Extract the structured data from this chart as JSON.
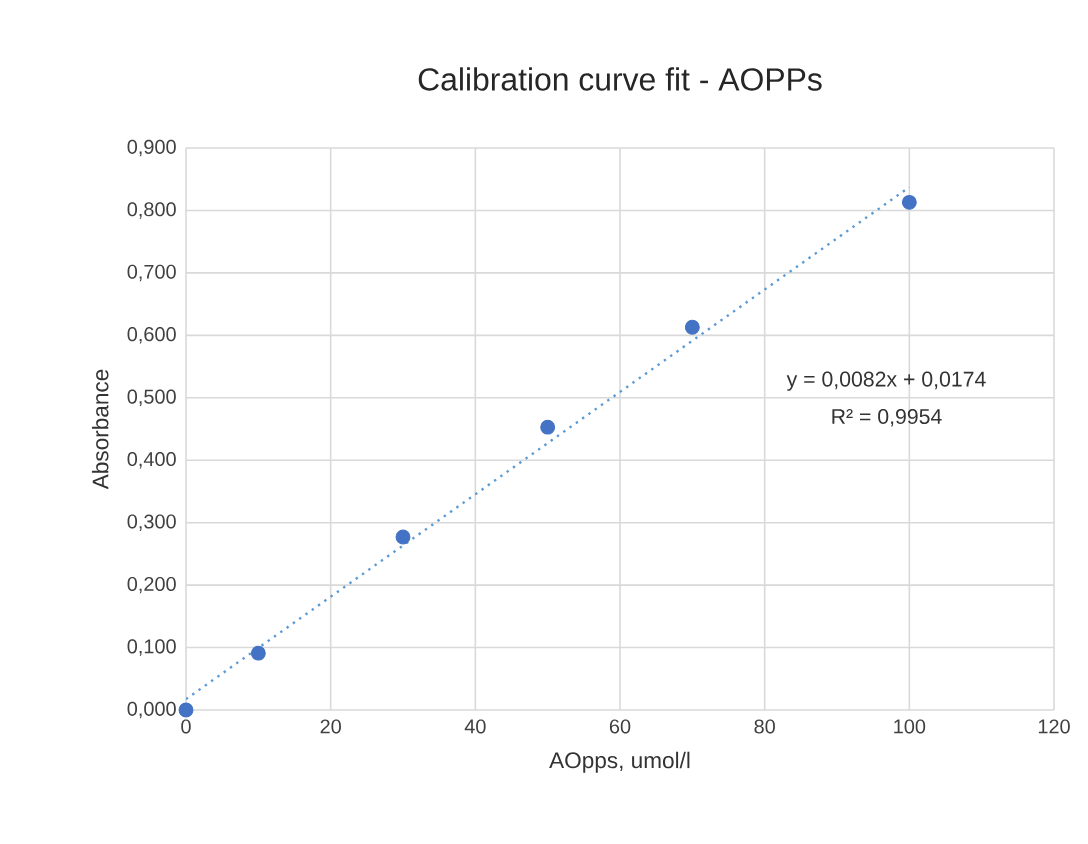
{
  "chart_data": {
    "type": "scatter",
    "title": "Calibration curve fit - AOPPs",
    "xlabel": "AOpps, umol/l",
    "ylabel": "Absorbance",
    "xlim": [
      0,
      120
    ],
    "xticks": [
      0,
      20,
      40,
      60,
      80,
      100,
      120
    ],
    "ylim": [
      0,
      0.9
    ],
    "yticks": [
      {
        "value": 0,
        "label": "0,000"
      },
      {
        "value": 0.1,
        "label": "0,100"
      },
      {
        "value": 0.2,
        "label": "0,200"
      },
      {
        "value": 0.3,
        "label": "0,300"
      },
      {
        "value": 0.4,
        "label": "0,400"
      },
      {
        "value": 0.5,
        "label": "0,500"
      },
      {
        "value": 0.6,
        "label": "0,600"
      },
      {
        "value": 0.7,
        "label": "0,700"
      },
      {
        "value": 0.8,
        "label": "0,800"
      },
      {
        "value": 0.9,
        "label": "0,900"
      }
    ],
    "grid": true,
    "series": [
      {
        "color": "#4472c4",
        "marker": "circle",
        "x": [
          0,
          10,
          30,
          50,
          70,
          100
        ],
        "values": [
          0.0,
          0.091,
          0.277,
          0.453,
          0.613,
          0.813
        ]
      },
      {
        "type": "line",
        "color": "#5b9bd5",
        "line_style": "dotted",
        "marker": "none",
        "x": [
          0,
          100
        ],
        "values": [
          0.0174,
          0.8374
        ]
      }
    ],
    "annotations": [
      "y = 0,0082x + 0,0174",
      "R² = 0,9954"
    ]
  }
}
